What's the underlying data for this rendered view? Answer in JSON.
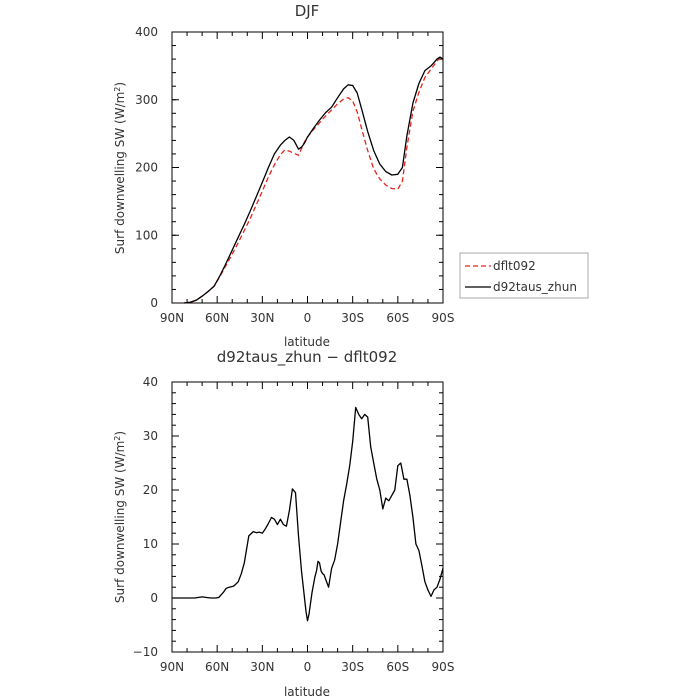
{
  "chart_data": [
    {
      "type": "line",
      "title": "DJF",
      "xlabel": "latitude",
      "ylabel": "Surf downwelling SW (W/m²)",
      "ylabel_main": "Surf downwelling SW (W/m",
      "ylabel_sup": "2",
      "ylabel_end": ")",
      "xlim": [
        90,
        -90
      ],
      "ylim": [
        0,
        400
      ],
      "x_ticks": [
        90,
        60,
        30,
        0,
        -30,
        -60,
        -90
      ],
      "x_tick_labels": [
        "90N",
        "60N",
        "30N",
        "0",
        "30S",
        "60S",
        "90S"
      ],
      "y_ticks": [
        0,
        100,
        200,
        300,
        400
      ],
      "y_tick_labels": [
        "0",
        "100",
        "200",
        "300",
        "400"
      ],
      "legend_placement": "right",
      "series": [
        {
          "name": "dflt092",
          "color": "#e8231c",
          "dashed": true,
          "x": [
            82,
            78,
            74,
            70,
            66,
            62,
            58,
            54,
            50,
            46,
            42,
            38,
            34,
            30,
            26,
            22,
            18,
            15,
            12,
            9,
            6,
            4,
            2,
            0,
            -4,
            -8,
            -12,
            -16,
            -20,
            -24,
            -27,
            -30,
            -33,
            -36,
            -40,
            -44,
            -48,
            -52,
            -56,
            -60,
            -63,
            -66,
            -70,
            -74,
            -78,
            -82,
            -86,
            -88,
            -90
          ],
          "y": [
            0,
            1,
            4,
            10,
            17,
            25,
            40,
            56,
            72,
            89,
            107,
            125,
            145,
            165,
            186,
            204,
            219,
            226,
            224,
            221,
            218,
            228,
            238,
            245,
            256,
            266,
            276,
            285,
            294,
            301,
            303,
            298,
            282,
            257,
            225,
            198,
            183,
            174,
            169,
            168,
            180,
            230,
            283,
            311,
            333,
            345,
            357,
            362,
            358
          ]
        },
        {
          "name": "d92taus_zhun",
          "color": "#000000",
          "dashed": false,
          "x": [
            82,
            78,
            74,
            70,
            66,
            62,
            58,
            54,
            50,
            46,
            42,
            38,
            34,
            30,
            26,
            22,
            18,
            15,
            12,
            9,
            6,
            4,
            2,
            0,
            -4,
            -8,
            -12,
            -16,
            -20,
            -24,
            -27,
            -30,
            -33,
            -36,
            -40,
            -44,
            -48,
            -52,
            -56,
            -60,
            -63,
            -66,
            -70,
            -74,
            -78,
            -82,
            -86,
            -88,
            -90
          ],
          "y": [
            0,
            1,
            4,
            10,
            17,
            25,
            41,
            59,
            78,
            97,
            116,
            136,
            157,
            178,
            200,
            220,
            233,
            240,
            245,
            240,
            227,
            230,
            236,
            245,
            258,
            270,
            281,
            289,
            303,
            316,
            322,
            321,
            310,
            286,
            253,
            225,
            205,
            194,
            189,
            190,
            200,
            247,
            295,
            324,
            343,
            350,
            360,
            363,
            360
          ]
        }
      ]
    },
    {
      "type": "line",
      "title": "d92taus_zhun − dflt092",
      "xlabel": "latitude",
      "ylabel": "Surf downwelling SW (W/m²)",
      "ylabel_main": "Surf downwelling SW (W/m",
      "ylabel_sup": "2",
      "ylabel_end": ")",
      "xlim": [
        90,
        -90
      ],
      "ylim": [
        -10,
        40
      ],
      "x_ticks": [
        90,
        60,
        30,
        0,
        -30,
        -60,
        -90
      ],
      "x_tick_labels": [
        "90N",
        "60N",
        "30N",
        "0",
        "30S",
        "60S",
        "90S"
      ],
      "y_ticks": [
        -10,
        0,
        10,
        20,
        30,
        40
      ],
      "y_tick_labels": [
        "−10",
        "0",
        "10",
        "20",
        "30",
        "40"
      ],
      "series": [
        {
          "color": "#000000",
          "dashed": false,
          "x": [
            90,
            80,
            75,
            70,
            67,
            64,
            61,
            59,
            56,
            54,
            52,
            49,
            46,
            44,
            42,
            39,
            36,
            34,
            32,
            30,
            28,
            26,
            24,
            22,
            20,
            18,
            16,
            14,
            12,
            10,
            8,
            6,
            4,
            2,
            1,
            0,
            -1,
            -2,
            -3,
            -4,
            -5,
            -6,
            -7,
            -8,
            -9,
            -10,
            -11,
            -12,
            -14,
            -16,
            -18,
            -20,
            -22,
            -24,
            -26,
            -28,
            -30,
            -32,
            -34,
            -36,
            -38,
            -40,
            -42,
            -44,
            -46,
            -48,
            -50,
            -52,
            -54,
            -56,
            -58,
            -60,
            -62,
            -64,
            -66,
            -68,
            -70,
            -72,
            -74,
            -76,
            -78,
            -80,
            -82,
            -84,
            -86,
            -88,
            -90
          ],
          "y": [
            0,
            0,
            0,
            0.2,
            0.1,
            0,
            0,
            0.1,
            1,
            1.8,
            2,
            2.2,
            3,
            4.5,
            6.5,
            11.5,
            12.3,
            12.1,
            12.2,
            12,
            12.8,
            13.8,
            14.9,
            14.6,
            13.6,
            14.6,
            13.6,
            13.3,
            16.2,
            20.2,
            19.5,
            11.5,
            5,
            0,
            -2.5,
            -4.2,
            -3,
            -1,
            1,
            2.5,
            4,
            5,
            6.8,
            6.5,
            5,
            4.5,
            4.3,
            3.5,
            2,
            5.5,
            7,
            10,
            14,
            18,
            21,
            24.5,
            29,
            35.3,
            34,
            33.2,
            34,
            33.5,
            28,
            25,
            22,
            20,
            16.5,
            18.5,
            18,
            19,
            20,
            24.5,
            25,
            22,
            22,
            19,
            15,
            10,
            8.8,
            6,
            3,
            1.5,
            0.3,
            1.5,
            2,
            3.5,
            5.5
          ]
        }
      ]
    }
  ]
}
